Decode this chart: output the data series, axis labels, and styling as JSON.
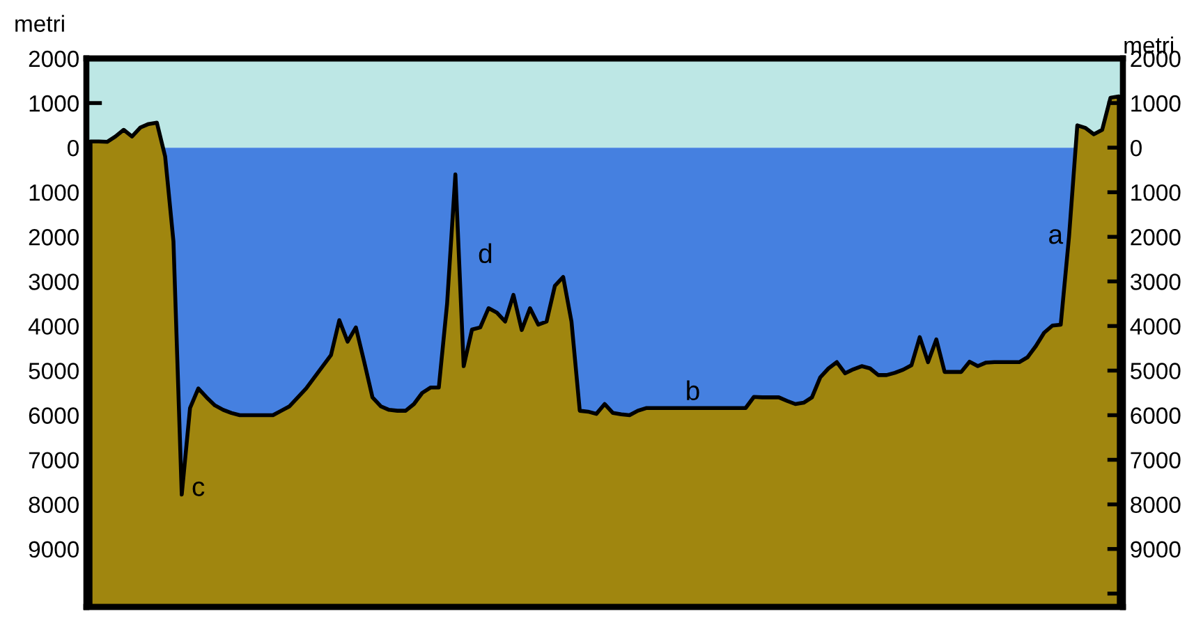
{
  "chart_data": {
    "type": "area",
    "categories": [
      null,
      null,
      null,
      null,
      null,
      null,
      null,
      null,
      null,
      null,
      null,
      null,
      null,
      null,
      null,
      null,
      null,
      null,
      null,
      null,
      null,
      null,
      null,
      null,
      null,
      null,
      null,
      null,
      null,
      null,
      null,
      null,
      null,
      null,
      null,
      null,
      null,
      null,
      null,
      null,
      null,
      null,
      null,
      null,
      null,
      null,
      null,
      null,
      null,
      null,
      null,
      null,
      null,
      null,
      null,
      null,
      null,
      null,
      null,
      null,
      null,
      null,
      null,
      null,
      null,
      null,
      null,
      null,
      null,
      null,
      null,
      null,
      null,
      null,
      null,
      null,
      null,
      null,
      null,
      null,
      null,
      null,
      null,
      null,
      null,
      null,
      null,
      null,
      null,
      null,
      null,
      null,
      null,
      null,
      null,
      null,
      null,
      null,
      null,
      null,
      null,
      null,
      null,
      null,
      null,
      null,
      null,
      null,
      null,
      null,
      null,
      null,
      null,
      null,
      null,
      null,
      null,
      null,
      null,
      null,
      null,
      null,
      null,
      null,
      null
    ],
    "series": [
      {
        "color": "#a0860f",
        "values": [
          140,
          140,
          130,
          250,
          400,
          250,
          450,
          530,
          560,
          -200,
          -2100,
          -7780,
          -5840,
          -5400,
          -5600,
          -5780,
          -5880,
          -5950,
          -6000,
          -6000,
          -6000,
          -6000,
          -6000,
          -5900,
          -5800,
          -5600,
          -5400,
          -5150,
          -4900,
          -4650,
          -3870,
          -4350,
          -4030,
          -4800,
          -5600,
          -5800,
          -5880,
          -5900,
          -5900,
          -5750,
          -5500,
          -5380,
          -5380,
          -3500,
          -600,
          -4900,
          -4080,
          -4030,
          -3600,
          -3700,
          -3900,
          -3300,
          -4090,
          -3600,
          -3970,
          -3900,
          -3100,
          -2900,
          -3900,
          -5900,
          -5920,
          -5970,
          -5750,
          -5950,
          -5980,
          -6000,
          -5900,
          -5840,
          -5840,
          -5840,
          -5840,
          -5840,
          -5840,
          -5840,
          -5840,
          -5840,
          -5840,
          -5840,
          -5840,
          -5840,
          -5590,
          -5600,
          -5600,
          -5600,
          -5680,
          -5750,
          -5720,
          -5600,
          -5150,
          -4950,
          -4810,
          -5060,
          -4970,
          -4900,
          -4950,
          -5100,
          -5100,
          -5050,
          -4980,
          -4880,
          -4250,
          -4810,
          -4300,
          -5030,
          -5030,
          -5030,
          -4800,
          -4900,
          -4820,
          -4810,
          -4810,
          -4810,
          -4810,
          -4700,
          -4450,
          -4150,
          -3990,
          -3970,
          -2000,
          500,
          440,
          300,
          400,
          1120,
          1150
        ]
      }
    ],
    "ylabel": "metri",
    "y2label": "metri",
    "ylim": [
      -10300,
      2000
    ],
    "yticks": [
      2000,
      1000,
      0,
      {
        "value": -1000,
        "label": "1000"
      },
      {
        "value": -2000,
        "label": "2000"
      },
      {
        "value": -3000,
        "label": "3000"
      },
      {
        "value": -4000,
        "label": "4000"
      },
      {
        "value": -5000,
        "label": "5000"
      },
      {
        "value": -6000,
        "label": "6000"
      },
      {
        "value": -7000,
        "label": "7000"
      },
      {
        "value": -8000,
        "label": "8000"
      },
      {
        "value": -9000,
        "label": "9000"
      },
      {
        "value": -10000,
        "label": null
      }
    ],
    "y2lim": [
      -10300,
      2000
    ],
    "y2ticks": [
      2000,
      1000,
      0,
      {
        "value": -1000,
        "label": "1000"
      },
      {
        "value": -2000,
        "label": "2000"
      },
      {
        "value": -3000,
        "label": "3000"
      },
      {
        "value": -4000,
        "label": "4000"
      },
      {
        "value": -5000,
        "label": "5000"
      },
      {
        "value": -6000,
        "label": "6000"
      },
      {
        "value": -7000,
        "label": "7000"
      },
      {
        "value": -8000,
        "label": "8000"
      },
      {
        "value": -9000,
        "label": "9000"
      },
      {
        "value": -10000,
        "label": null
      }
    ],
    "bands": [
      {
        "axis": "y",
        "from": 0,
        "to": 2000,
        "color": "#bde7e5"
      },
      {
        "axis": "y",
        "from": -10300,
        "to": 0,
        "color": "#4580e0"
      }
    ],
    "annotations": [
      "a",
      "b",
      "c",
      "d"
    ],
    "grid": false,
    "legend": false
  }
}
